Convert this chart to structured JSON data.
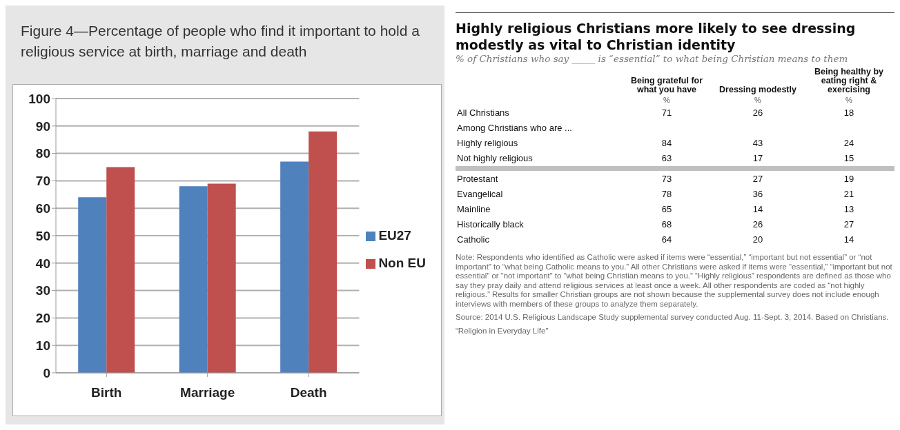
{
  "chart_data": [
    {
      "type": "bar",
      "title": "Figure 4—Percentage of people who find it important to hold a religious service at birth, marriage and death",
      "categories": [
        "Birth",
        "Marriage",
        "Death"
      ],
      "series": [
        {
          "name": "EU27",
          "color": "#4f81bd",
          "values": [
            64,
            68,
            77
          ]
        },
        {
          "name": "Non EU",
          "color": "#c0504d",
          "values": [
            75,
            69,
            88
          ]
        }
      ],
      "ylim": [
        0,
        100
      ],
      "yticks": [
        0,
        10,
        20,
        30,
        40,
        50,
        60,
        70,
        80,
        90,
        100
      ],
      "grid": "y",
      "legend": "right"
    },
    {
      "type": "heatmap",
      "title": "Highly religious Christians more likely to see dressing modestly as vital to Christian identity",
      "subtitle": "% of Christians who say _____ is “essential” to what being Christian means to them",
      "categories": [
        "Being grateful for what you have",
        "Dressing modestly",
        "Being healthy by eating right & exercising"
      ],
      "data_labels": true,
      "y_categories": [
        "All Christians",
        "Among Christians who are ...",
        "Highly religious",
        "Not highly religious",
        "Protestant",
        "Evangelical",
        "Mainline",
        "Historically black",
        "Catholic"
      ],
      "cells": [
        [
          71,
          26,
          18
        ],
        [
          null,
          null,
          null
        ],
        [
          84,
          43,
          24
        ],
        [
          63,
          17,
          15
        ],
        [
          73,
          27,
          19
        ],
        [
          78,
          36,
          21
        ],
        [
          65,
          14,
          13
        ],
        [
          68,
          26,
          27
        ],
        [
          64,
          20,
          14
        ]
      ],
      "annotations": [
        "%",
        "%",
        "%",
        "Note: Respondents who identified as Catholic were asked if items were “essential,” “important but not essential” or “not important” to “what being Catholic means to you.” All other Christians were asked if items were “essential,” “important but not essential” or “not important” to “what being Christian means to you.” “Highly religious” respondents are defined as those who say they pray daily and attend religious services at least once a week. All other respondents are coded as “not highly religious.” Results for smaller Christian groups are not shown because the supplemental survey does not include enough interviews with members of these groups to analyze them separately.",
        "Source: 2014 U.S. Religious Landscape Study supplemental survey conducted Aug. 11-Sept. 3, 2014. Based on Christians.",
        "“Religion in Everyday Life”"
      ]
    }
  ]
}
